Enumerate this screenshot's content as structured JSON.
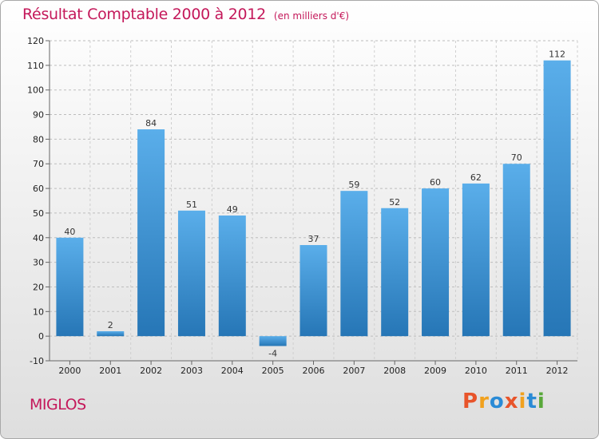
{
  "header": {
    "title": "Résultat Comptable 2000 à 2012",
    "subtitle": "(en milliers d'€)"
  },
  "commune": "MIGLOS",
  "logo": {
    "text": "Proxiti",
    "colors": [
      "#e8542a",
      "#f1a11e",
      "#2a8bd6",
      "#e8542a",
      "#f1a11e",
      "#2a8bd6",
      "#59a83a"
    ]
  },
  "chart_data": {
    "type": "bar",
    "title": "Résultat Comptable 2000 à 2012",
    "subtitle": "(en milliers d'€)",
    "xlabel": "",
    "ylabel": "",
    "categories": [
      "2000",
      "2001",
      "2002",
      "2003",
      "2004",
      "2005",
      "2006",
      "2007",
      "2008",
      "2009",
      "2010",
      "2011",
      "2012"
    ],
    "values": [
      40,
      2,
      84,
      51,
      49,
      -4,
      37,
      59,
      52,
      60,
      62,
      70,
      112
    ],
    "ylim": [
      -10,
      120
    ],
    "yticks": [
      -10,
      0,
      10,
      20,
      30,
      40,
      50,
      60,
      70,
      80,
      90,
      100,
      110,
      120
    ],
    "grid": "dashed-horizontal",
    "bar_color": "#4ea3e3",
    "bar_color_dark": "#2a78b8"
  }
}
